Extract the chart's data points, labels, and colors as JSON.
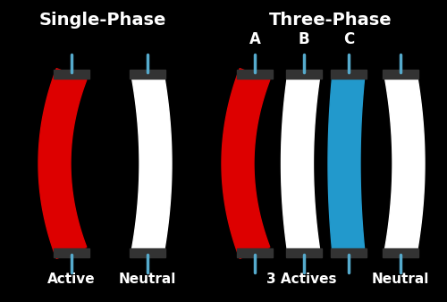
{
  "bg_color": "#000000",
  "title_left": "Single-Phase",
  "title_right": "Three-Phase",
  "title_fontsize": 14,
  "label_fontsize": 11,
  "abc_fontsize": 12,
  "wire_colors": {
    "red": "#dd0000",
    "white": "#ffffff",
    "blue": "#2299cc",
    "cyan": "#55aacc"
  },
  "labels_bottom_left": [
    "Active",
    "Neutral"
  ],
  "labels_bottom_right": [
    "3 Actives",
    "Neutral"
  ],
  "abc_labels": [
    "A",
    "B",
    "C"
  ],
  "connector_color": "#55aacc"
}
